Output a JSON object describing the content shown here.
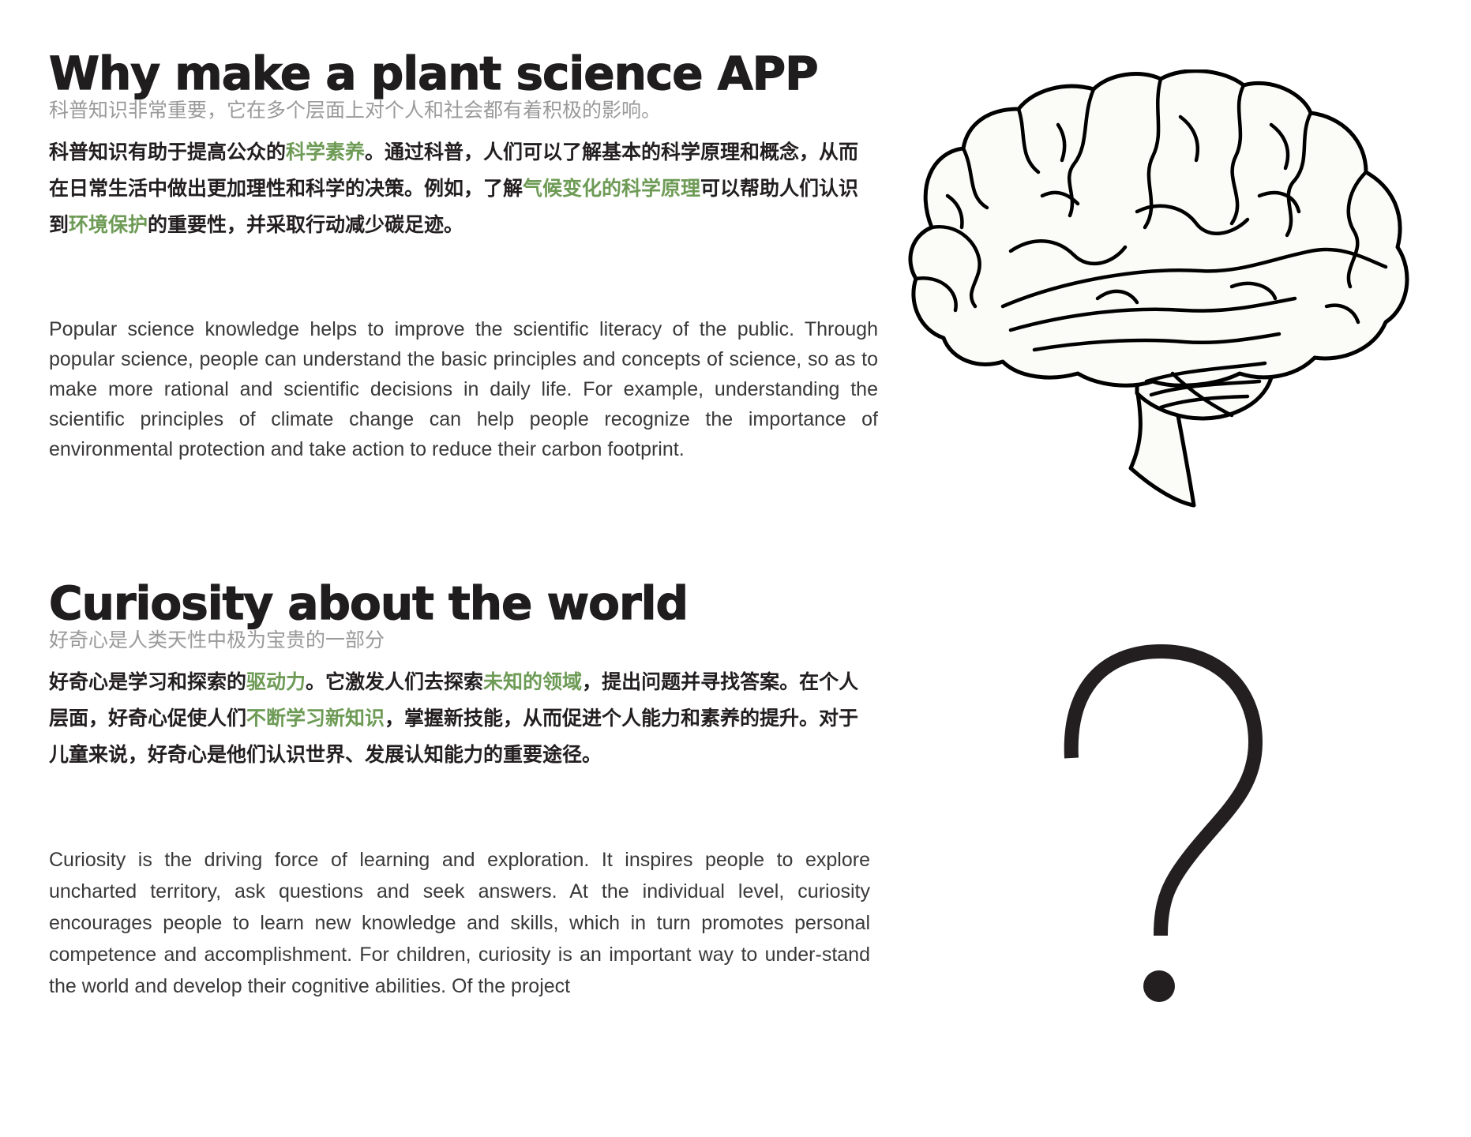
{
  "sections": [
    {
      "title": "Why make a plant science APP",
      "subtitle": "科普知识非常重要，它在多个层面上对个人和社会都有着积极的影响。",
      "cn_paragraph": [
        {
          "text": "科普知识有助于提高公众的",
          "highlight": false
        },
        {
          "text": "科学素养",
          "highlight": true
        },
        {
          "text": "。通过科普，人们可以了解基本的科学原理和概念，从而在日常生活中做出更加理性和科学的决策。例如，了解",
          "highlight": false
        },
        {
          "text": "气候变化的科学原理",
          "highlight": true
        },
        {
          "text": "可以帮助人们认识到",
          "highlight": false
        },
        {
          "text": "环境保护",
          "highlight": true
        },
        {
          "text": "的重要性，并采取行动减少碳足迹。",
          "highlight": false
        }
      ],
      "en_paragraph": "Popular science knowledge helps to improve the scientific literacy of the public. Through popular science, people can understand the basic principles and concepts of science, so as to make more rational and scientific decisions in daily life. For example, understanding the scientific principles of climate change can help people recognize the importance of environmental protection and take action to reduce their carbon footprint."
    },
    {
      "title": "Curiosity about the world",
      "subtitle": "好奇心是人类天性中极为宝贵的一部分",
      "cn_paragraph": [
        {
          "text": "好奇心是学习和探索的",
          "highlight": false
        },
        {
          "text": "驱动力",
          "highlight": true
        },
        {
          "text": "。它激发人们去探索",
          "highlight": false
        },
        {
          "text": "未知的领域",
          "highlight": true
        },
        {
          "text": "，提出问题并寻找答案。在个人层面，好奇心促使人们",
          "highlight": false
        },
        {
          "text": "不断学习新知识",
          "highlight": true
        },
        {
          "text": "，掌握新技能，从而促进个人能力和素养的提升。对于儿童来说，好奇心是他们认识世界、发展认知能力的重要途径。",
          "highlight": false
        }
      ],
      "en_paragraph": "Curiosity is the driving force of learning and exploration. It inspires people to explore uncharted territory, ask questions and seek answers. At the individual level, curiosity encourages people to learn new knowledge and skills, which in turn promotes personal competence and accomplishment. For children, curiosity is an important way to under-stand the world and develop their cognitive abilities. Of the project"
    }
  ],
  "illustrations": {
    "brain": "brain-icon",
    "question": "question-mark-icon"
  },
  "colors": {
    "highlight": "#6e9b56",
    "title": "#1f1d1e",
    "subtitle": "#9a9a9a",
    "body": "#231f20"
  }
}
